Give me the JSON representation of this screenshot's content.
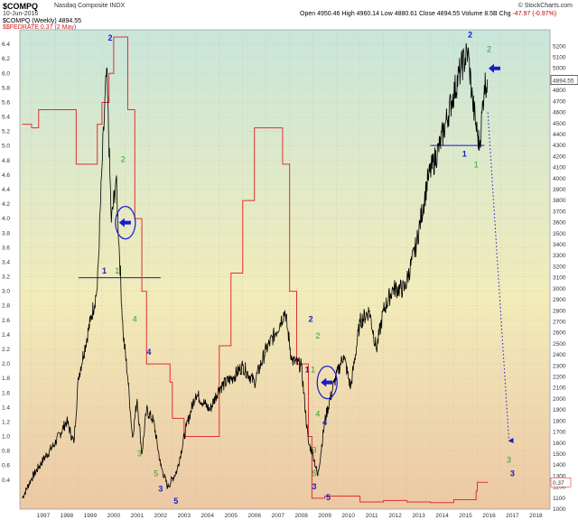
{
  "header": {
    "symbol": "$COMPQ",
    "exchange": "Nasdaq Composite INDX",
    "date": "10-Jun-2016",
    "quote_main": "Open 4950.46  High 4960.14  Low 4880.61  Close 4894.55  Volume 8.5B  Chg",
    "quote_chg": "-47.97 (-0.97%)",
    "legend_primary": "$COMPQ (Weekly) 4894.55",
    "legend_secondary": "$$FEDRATE 0.37 (2 May)",
    "source": "© StockCharts.com"
  },
  "colors": {
    "background_top": "#c9e6da",
    "background_mid": "#f2ecba",
    "background_bottom": "#ecc8a4",
    "price_series": "#000000",
    "fed_rate_series": "#e03030",
    "wave_green": "#22aa22",
    "wave_blue": "#1a1acc",
    "annotation": "#1a1acc"
  },
  "chart_data": {
    "type": "line",
    "title": "$COMPQ",
    "subtitle": "Nasdaq Composite INDX",
    "xlabel": "",
    "ylabel": "",
    "x_range": [
      1996.5,
      2019.1
    ],
    "x_ticks": [
      "1997",
      "1998",
      "1999",
      "2000",
      "2001",
      "2002",
      "2003",
      "2004",
      "2005",
      "2006",
      "2007",
      "2008",
      "2009",
      "2010",
      "2011",
      "2012",
      "2013",
      "2014",
      "2015",
      "2016",
      "2017",
      "2018"
    ],
    "y_left": {
      "range": [
        0.0,
        6.6
      ],
      "ticks": [
        "0.4",
        "0.6",
        "0.8",
        "1.0",
        "1.2",
        "1.4",
        "1.6",
        "1.8",
        "2.0",
        "2.2",
        "2.4",
        "2.6",
        "2.8",
        "3.0",
        "3.2",
        "3.4",
        "3.6",
        "3.8",
        "4.0",
        "4.2",
        "4.4",
        "4.6",
        "4.8",
        "5.0",
        "5.2",
        "5.4",
        "5.6",
        "5.8",
        "6.0",
        "6.2",
        "6.4"
      ]
    },
    "y_right": {
      "range": [
        1000,
        5350
      ],
      "ticks": [
        "1000",
        "1100",
        "1200",
        "1300",
        "1400",
        "1500",
        "1600",
        "1700",
        "1800",
        "1900",
        "2000",
        "2100",
        "2200",
        "2300",
        "2400",
        "2500",
        "2600",
        "2700",
        "2800",
        "2900",
        "3000",
        "3100",
        "3200",
        "3300",
        "3400",
        "3500",
        "3600",
        "3700",
        "3800",
        "3900",
        "4000",
        "4100",
        "4200",
        "4300",
        "4400",
        "4500",
        "4600",
        "4700",
        "4800",
        "4900",
        "5000",
        "5100",
        "5200"
      ]
    },
    "grid": true,
    "series": [
      {
        "name": "$COMPQ (Weekly)",
        "axis": "right",
        "x": [
          1996.6,
          1997.0,
          1997.5,
          1998.0,
          1998.5,
          1998.8,
          1999.0,
          1999.5,
          1999.8,
          2000.0,
          2000.2,
          2000.4,
          2000.6,
          2000.9,
          2001.1,
          2001.3,
          2001.5,
          2001.7,
          2001.9,
          2002.2,
          2002.5,
          2002.8,
          2003.2,
          2003.6,
          2004.0,
          2004.6,
          2005.0,
          2005.6,
          2006.0,
          2006.5,
          2007.0,
          2007.4,
          2007.8,
          2008.1,
          2008.5,
          2008.8,
          2009.0,
          2009.2,
          2009.5,
          2009.9,
          2010.3,
          2010.6,
          2011.0,
          2011.4,
          2011.7,
          2012.0,
          2012.4,
          2012.9,
          2013.4,
          2013.9,
          2014.4,
          2014.9,
          2015.3,
          2015.6,
          2015.8,
          2016.0,
          2016.1,
          2016.3,
          2016.45
        ],
        "values": [
          1100,
          1280,
          1450,
          1600,
          1800,
          1600,
          2200,
          2700,
          3000,
          4100,
          5000,
          3600,
          4000,
          2600,
          2200,
          1650,
          2000,
          1500,
          1900,
          1800,
          1400,
          1200,
          1350,
          1750,
          2050,
          1900,
          2100,
          2200,
          2300,
          2150,
          2450,
          2600,
          2800,
          2350,
          2300,
          1600,
          1500,
          1300,
          1800,
          2150,
          2400,
          2100,
          2700,
          2800,
          2450,
          2800,
          3000,
          3000,
          3400,
          4000,
          4300,
          4700,
          5000,
          5150,
          4700,
          4400,
          4300,
          4850,
          4894.55
        ]
      },
      {
        "name": "$$FEDRATE",
        "axis": "left",
        "x": [
          1996.6,
          1997.0,
          1997.3,
          1998.0,
          1998.7,
          1998.9,
          1999.4,
          1999.8,
          2000.0,
          2000.3,
          2000.5,
          2001.0,
          2001.1,
          2001.4,
          2001.7,
          2001.9,
          2002.9,
          2003.0,
          2003.5,
          2004.5,
          2005.0,
          2005.5,
          2006.0,
          2006.5,
          2007.5,
          2007.7,
          2008.0,
          2008.3,
          2008.8,
          2008.95,
          2009.0,
          2009.5,
          2010.0,
          2011.0,
          2012.0,
          2013.0,
          2014.0,
          2015.0,
          2015.95,
          2016.0,
          2016.45
        ],
        "values": [
          5.3,
          5.25,
          5.5,
          5.5,
          5.5,
          4.75,
          4.75,
          5.3,
          5.6,
          6.0,
          6.5,
          6.5,
          5.5,
          4.0,
          3.0,
          2.0,
          1.75,
          1.25,
          1.0,
          1.0,
          2.25,
          3.25,
          4.25,
          5.25,
          5.25,
          4.75,
          3.0,
          2.0,
          1.0,
          0.15,
          0.15,
          0.18,
          0.18,
          0.1,
          0.12,
          0.1,
          0.09,
          0.13,
          0.25,
          0.37,
          0.37
        ]
      }
    ],
    "annotations": [
      {
        "text": "2",
        "color": "blue",
        "x": 2000.35,
        "y": 5250
      },
      {
        "text": "2",
        "color": "green",
        "x": 2000.9,
        "y": 4150
      },
      {
        "text": "1",
        "color": "blue",
        "x": 2000.1,
        "y": 3140
      },
      {
        "text": "1",
        "color": "green",
        "x": 2000.65,
        "y": 3140
      },
      {
        "text": "4",
        "color": "green",
        "x": 2001.4,
        "y": 2700
      },
      {
        "text": "4",
        "color": "blue",
        "x": 2002.0,
        "y": 2400
      },
      {
        "text": "3",
        "color": "green",
        "x": 2001.6,
        "y": 1480
      },
      {
        "text": "5",
        "color": "green",
        "x": 2002.3,
        "y": 1300
      },
      {
        "text": "3",
        "color": "blue",
        "x": 2002.5,
        "y": 1160
      },
      {
        "text": "5",
        "color": "blue",
        "x": 2003.15,
        "y": 1050
      },
      {
        "text": "2",
        "color": "blue",
        "x": 2008.9,
        "y": 2700
      },
      {
        "text": "2",
        "color": "green",
        "x": 2009.2,
        "y": 2550
      },
      {
        "text": "1",
        "color": "blue",
        "x": 2008.75,
        "y": 2240
      },
      {
        "text": "1",
        "color": "green",
        "x": 2009.0,
        "y": 2240
      },
      {
        "text": "4",
        "color": "green",
        "x": 2009.2,
        "y": 1840
      },
      {
        "text": "4",
        "color": "blue",
        "x": 2009.5,
        "y": 1760
      },
      {
        "text": "3",
        "color": "green",
        "x": 2009.05,
        "y": 1510
      },
      {
        "text": "5",
        "color": "green",
        "x": 2009.05,
        "y": 1300
      },
      {
        "text": "3",
        "color": "blue",
        "x": 2009.05,
        "y": 1180
      },
      {
        "text": "5",
        "color": "blue",
        "x": 2009.65,
        "y": 1080
      },
      {
        "text": "2",
        "color": "blue",
        "x": 2015.7,
        "y": 5280
      },
      {
        "text": "2",
        "color": "green",
        "x": 2016.5,
        "y": 5150
      },
      {
        "text": "1",
        "color": "blue",
        "x": 2015.45,
        "y": 4200
      },
      {
        "text": "1",
        "color": "green",
        "x": 2015.95,
        "y": 4100
      },
      {
        "text": "3",
        "color": "green",
        "x": 2017.35,
        "y": 1420
      },
      {
        "text": "3",
        "color": "blue",
        "x": 2017.5,
        "y": 1300
      }
    ],
    "horizontal_levels": [
      {
        "x_start": 1999.0,
        "x_end": 2002.5,
        "value": 3100
      },
      {
        "x_start": 2014.0,
        "x_end": 2016.3,
        "value": 4300
      }
    ],
    "projection": {
      "x_start": 2016.45,
      "value_start": 4600,
      "x_end": 2017.35,
      "value_end": 1620
    },
    "price_label": "4894.55",
    "rate_label": "0.37"
  }
}
